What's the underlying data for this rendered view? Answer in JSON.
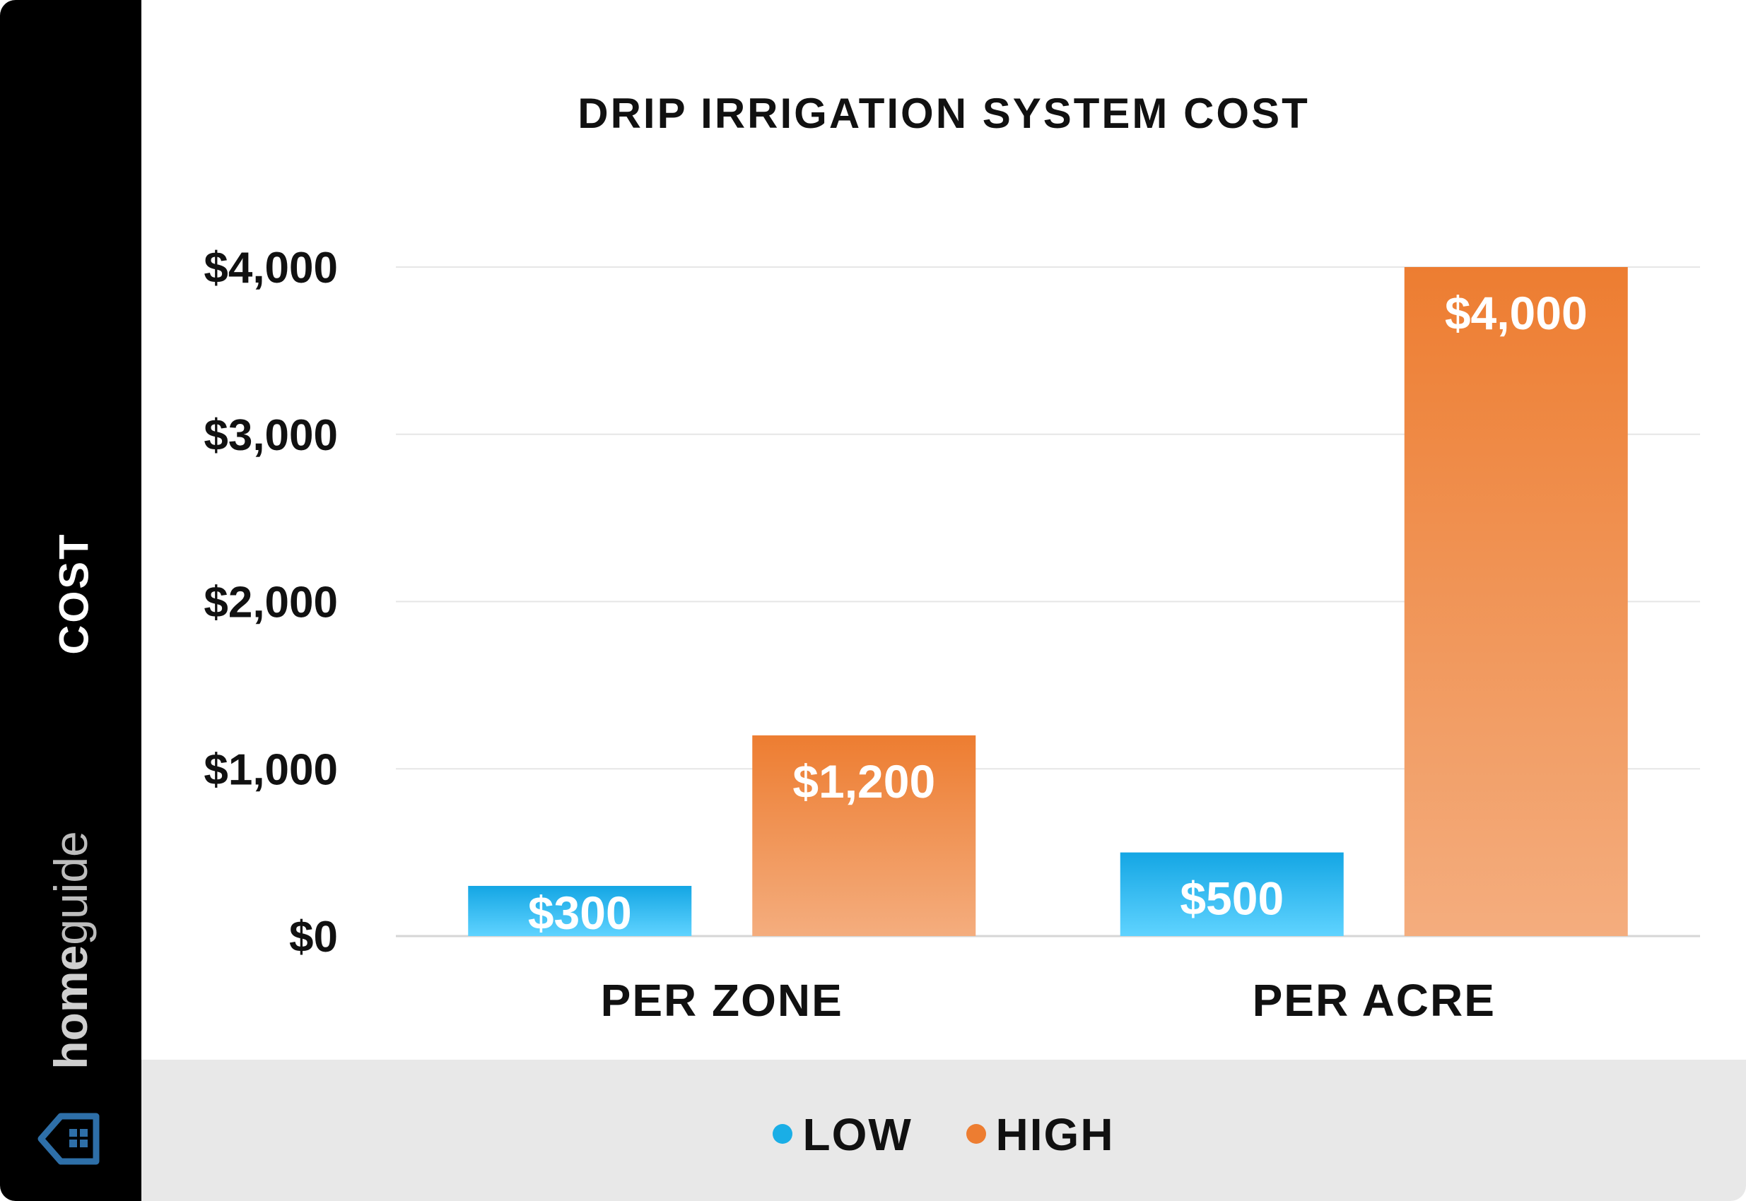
{
  "chart_data": {
    "type": "bar",
    "title": "DRIP IRRIGATION SYSTEM COST",
    "xlabel": "",
    "ylabel": "COST",
    "categories": [
      "PER ZONE",
      "PER ACRE"
    ],
    "series": [
      {
        "name": "LOW",
        "values": [
          300,
          500
        ],
        "color": "#1aaee6",
        "value_labels": [
          "$300",
          "$500"
        ]
      },
      {
        "name": "HIGH",
        "values": [
          1200,
          4000
        ],
        "color": "#ed7d31",
        "value_labels": [
          "$1,200",
          "$4,000"
        ]
      }
    ],
    "ylim": [
      0,
      4000
    ],
    "yticks": [
      0,
      1000,
      2000,
      3000,
      4000
    ],
    "ytick_labels": [
      "$0",
      "$1,000",
      "$2,000",
      "$3,000",
      "$4,000"
    ],
    "grid": true,
    "legend_position": "bottom-center"
  },
  "brand": {
    "name_bold": "home",
    "name_light": "guide",
    "logo_icon": "house-icon"
  },
  "colors": {
    "sidebar": "#000000",
    "legend_band": "#e8e8e8",
    "low": "#1aaee6",
    "high": "#ed7d31"
  }
}
